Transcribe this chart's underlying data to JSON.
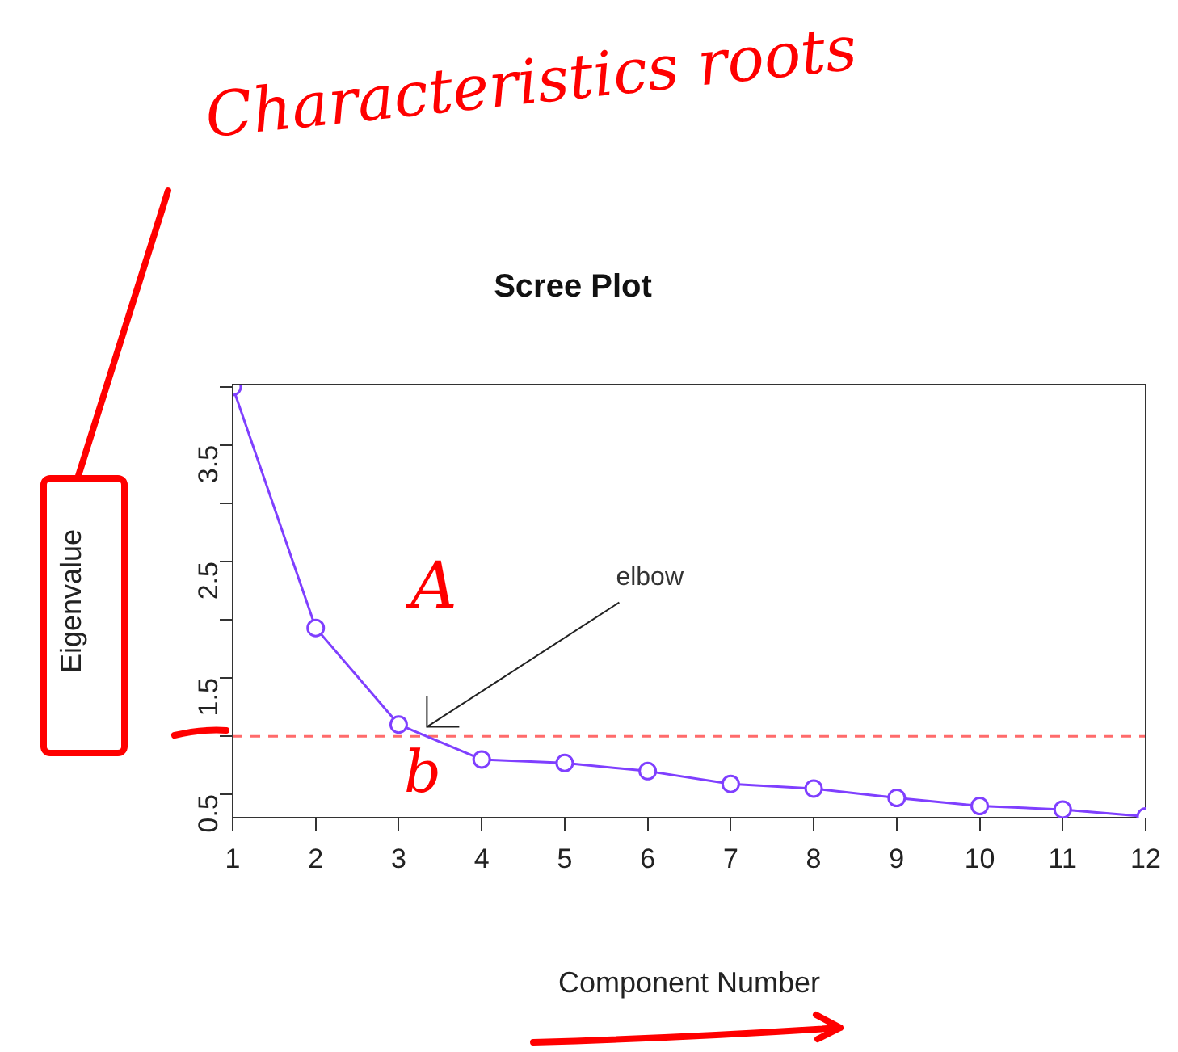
{
  "chart_data": {
    "type": "line",
    "title": "Scree Plot",
    "xlabel": "Component Number",
    "ylabel": "Eigenvalue",
    "x": [
      1,
      2,
      3,
      4,
      5,
      6,
      7,
      8,
      9,
      10,
      11,
      12
    ],
    "series": [
      {
        "color": "#7f3fff",
        "values": [
          4.0,
          1.93,
          1.1,
          0.8,
          0.77,
          0.7,
          0.59,
          0.55,
          0.47,
          0.4,
          0.37,
          0.31
        ]
      }
    ],
    "xlim": [
      1,
      12
    ],
    "xticks": [
      1,
      2,
      3,
      4,
      5,
      6,
      7,
      8,
      9,
      10,
      11,
      12
    ],
    "ylim": [
      0.3,
      4.02
    ],
    "yticks": [
      0.5,
      {
        "value": 1,
        "label": null
      },
      1.5,
      {
        "value": 2,
        "label": null
      },
      2.5,
      {
        "value": 3,
        "label": null
      },
      3.5,
      {
        "value": 4,
        "label": null
      }
    ],
    "ref_lines": [
      {
        "axis": "y",
        "value": 1,
        "color": "#ff6b6b",
        "line_style": "dashed"
      }
    ],
    "marker": "circle",
    "legend": false,
    "annotations": [
      {
        "text": "elbow",
        "x": 3.34,
        "y": 1.08
      },
      "Characteristics roots",
      "A",
      "b"
    ]
  }
}
